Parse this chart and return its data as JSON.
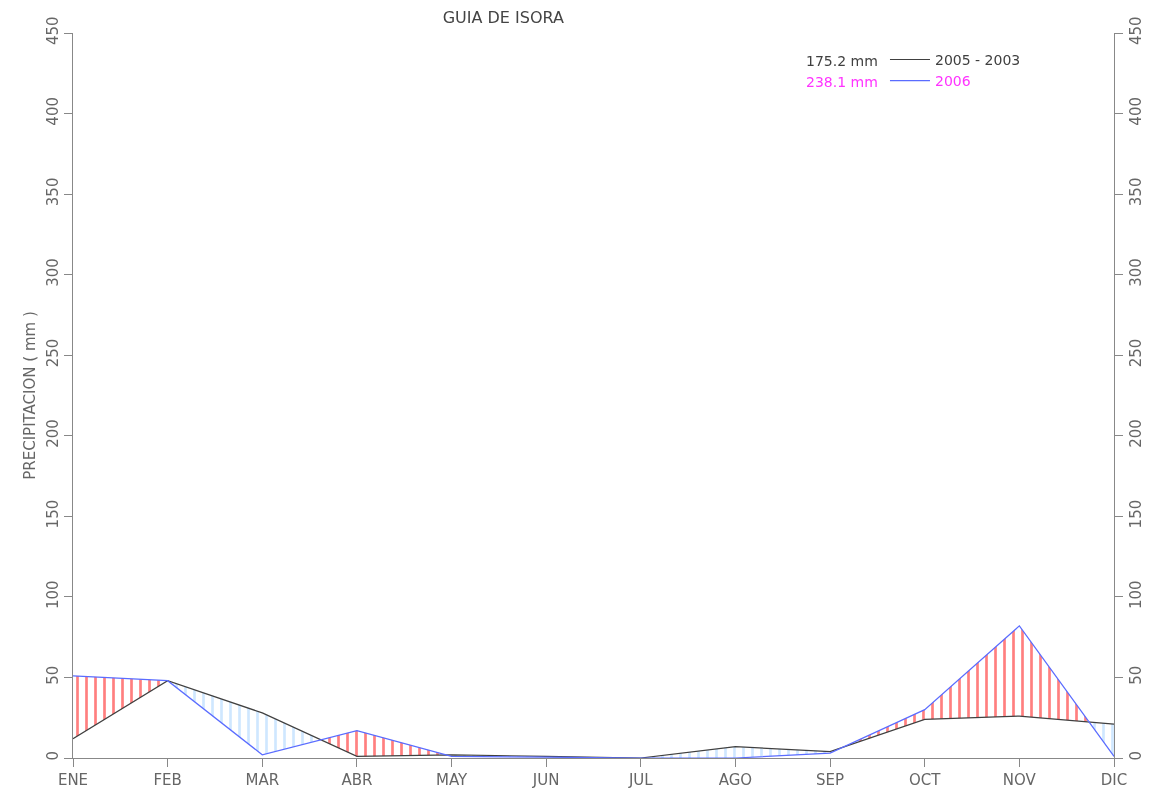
{
  "chart_data": {
    "type": "line",
    "title": "GUIA DE ISORA",
    "ylabel": "PRECIPITACION ( mm )",
    "categories": [
      "ENE",
      "FEB",
      "MAR",
      "ABR",
      "MAY",
      "JUN",
      "JUL",
      "AGO",
      "SEP",
      "OCT",
      "NOV",
      "DIC"
    ],
    "series": [
      {
        "name": "2005 - 2003",
        "color": "#404040",
        "values": [
          12,
          48,
          28,
          1,
          2,
          1,
          0,
          7,
          4,
          24,
          26,
          21
        ]
      },
      {
        "name": "2006",
        "color": "#5a6cff",
        "values": [
          51,
          48,
          2,
          17,
          1,
          0.5,
          0,
          0,
          3,
          30,
          82,
          1
        ]
      }
    ],
    "annotations": [
      "175.2 mm",
      "238.1 mm"
    ],
    "ylim": [
      0,
      450
    ],
    "yticks": [
      0,
      50,
      100,
      150,
      200,
      250,
      300,
      350,
      400,
      450
    ],
    "y2lim": [
      0,
      450
    ],
    "y2ticks": [
      0,
      50,
      100,
      150,
      200,
      250,
      300,
      350,
      400,
      450
    ],
    "legend": "top right",
    "marker": "none",
    "line_style": "solid"
  }
}
